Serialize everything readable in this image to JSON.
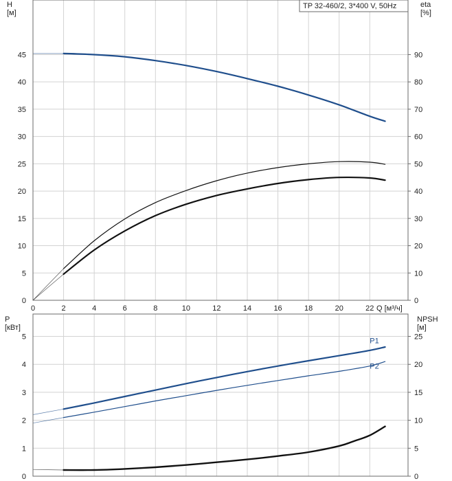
{
  "colors": {
    "blue": "#1f4e8c",
    "black": "#111111",
    "grid": "#d2d2d2"
  },
  "chart_data": [
    {
      "type": "line",
      "title": "TP 32-460/2, 3*400 V, 50Hz",
      "xlabel": "Q [м³/ч]",
      "ylabel": "H\n[м]",
      "y2label": "eta\n[%]",
      "xlim": [
        0,
        24.5
      ],
      "ylim": [
        0,
        55
      ],
      "y2lim": [
        0,
        110
      ],
      "xticks": [
        0,
        2,
        4,
        6,
        8,
        10,
        12,
        14,
        16,
        18,
        20,
        22
      ],
      "yticks": [
        0,
        5,
        10,
        15,
        20,
        25,
        30,
        35,
        40,
        45
      ],
      "y2ticks": [
        0,
        10,
        20,
        30,
        40,
        50,
        60,
        70,
        80,
        90
      ],
      "grid": true,
      "series": [
        {
          "axis": "left",
          "color": "#1f4e8c",
          "width": 2.2,
          "x": [
            0,
            2,
            4,
            6,
            8,
            10,
            12,
            14,
            16,
            18,
            20,
            22,
            23
          ],
          "values": [
            45.2,
            45.2,
            45.0,
            44.6,
            43.9,
            43.0,
            41.9,
            40.6,
            39.2,
            37.6,
            35.8,
            33.7,
            32.8
          ],
          "dashed_until": 2
        },
        {
          "axis": "left",
          "color": "#111111",
          "width": 1.2,
          "x": [
            0,
            2,
            4,
            6,
            8,
            10,
            12,
            14,
            16,
            18,
            20,
            22,
            23
          ],
          "values": [
            0,
            5.8,
            10.9,
            14.9,
            17.9,
            20.1,
            21.9,
            23.3,
            24.3,
            25.0,
            25.4,
            25.3,
            24.9
          ],
          "dashed_until": 2
        },
        {
          "axis": "left",
          "color": "#111111",
          "width": 2.2,
          "x": [
            0,
            2,
            4,
            6,
            8,
            10,
            12,
            14,
            16,
            18,
            20,
            22,
            23
          ],
          "values": [
            0,
            4.8,
            9.2,
            12.7,
            15.5,
            17.6,
            19.2,
            20.4,
            21.4,
            22.1,
            22.5,
            22.4,
            22.0
          ],
          "dashed_until": 2
        }
      ]
    },
    {
      "type": "line",
      "xlabel": "",
      "ylabel": "P\n[кВт]",
      "y2label": "NPSH\n[м]",
      "xlim": [
        0,
        24.5
      ],
      "ylim": [
        0,
        5.8
      ],
      "y2lim": [
        0,
        29
      ],
      "yticks": [
        0,
        1,
        2,
        3,
        4,
        5
      ],
      "y2ticks": [
        0,
        5,
        10,
        15,
        20,
        25
      ],
      "grid": true,
      "series": [
        {
          "name": "P1",
          "axis": "left",
          "color": "#1f4e8c",
          "width": 2.2,
          "x": [
            0,
            2,
            4,
            6,
            8,
            10,
            12,
            14,
            16,
            18,
            20,
            22,
            23
          ],
          "values": [
            2.2,
            2.4,
            2.62,
            2.85,
            3.08,
            3.31,
            3.53,
            3.74,
            3.94,
            4.13,
            4.31,
            4.5,
            4.62
          ],
          "dashed_until": 2,
          "label": "P1",
          "label_x": 22.0,
          "label_y": 4.75
        },
        {
          "name": "P2",
          "axis": "left",
          "color": "#1f4e8c",
          "width": 1.2,
          "x": [
            0,
            2,
            4,
            6,
            8,
            10,
            12,
            14,
            16,
            18,
            20,
            22,
            23
          ],
          "values": [
            1.9,
            2.1,
            2.29,
            2.49,
            2.69,
            2.88,
            3.07,
            3.25,
            3.42,
            3.59,
            3.75,
            3.94,
            4.1
          ],
          "dashed_until": 2,
          "label": "P2",
          "label_x": 22.0,
          "label_y": 3.85
        },
        {
          "axis": "right",
          "color": "#111111",
          "width": 2.4,
          "x": [
            0,
            2,
            4,
            6,
            8,
            10,
            12,
            14,
            16,
            18,
            20,
            21,
            22,
            23
          ],
          "values": [
            1.2,
            1.1,
            1.1,
            1.3,
            1.6,
            2.0,
            2.5,
            3.0,
            3.6,
            4.3,
            5.4,
            6.3,
            7.3,
            8.9
          ],
          "dashed_until": 2
        }
      ]
    }
  ]
}
